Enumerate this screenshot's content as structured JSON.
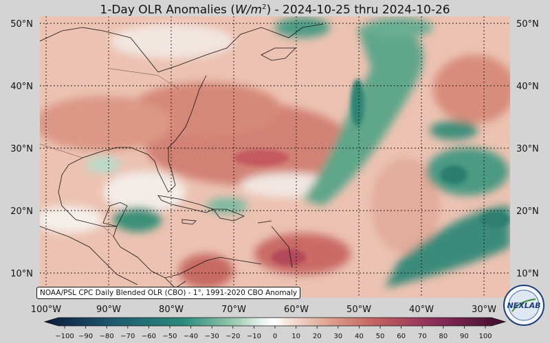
{
  "title": {
    "prefix": "1-Day OLR Anomalies (",
    "unit_base": "W/m",
    "unit_exp": "2",
    "suffix": ") - 2024-10-25 thru 2024-10-26"
  },
  "map": {
    "lat_labels": [
      "50°N",
      "40°N",
      "30°N",
      "20°N",
      "10°N"
    ],
    "lon_labels": [
      "100°W",
      "90°W",
      "80°W",
      "70°W",
      "60°W",
      "50°W",
      "40°W",
      "30°W"
    ],
    "grid": true
  },
  "colorbar": {
    "ticks": [
      "−100",
      "−90",
      "−80",
      "−70",
      "−60",
      "−50",
      "−40",
      "−30",
      "−20",
      "−10",
      "0",
      "10",
      "20",
      "30",
      "40",
      "50",
      "60",
      "70",
      "80",
      "90",
      "100"
    ]
  },
  "credit": "NOAA/PSL CPC Daily Blended OLR (CBO) - 1°, 1991-2020 CBO Anomaly",
  "logo": {
    "text": "NEXLAB",
    "name": "nexlab-logo"
  },
  "colors": {
    "strong_negative": "#0d1b3d",
    "negative": "#1f8a7a",
    "weak_negative": "#a8d4c0",
    "neutral": "#f7efea",
    "weak_positive": "#e8b6a4",
    "positive": "#c7695f",
    "strong_positive": "#3d0d2d"
  }
}
